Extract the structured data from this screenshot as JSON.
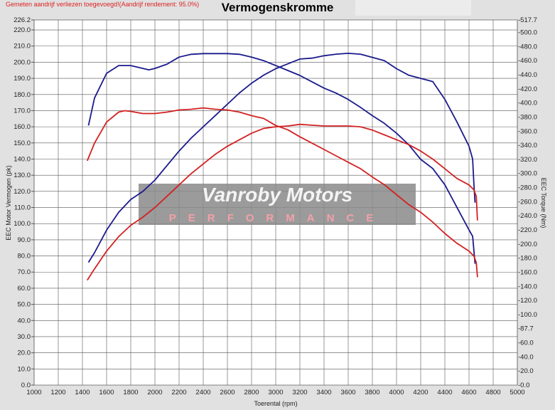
{
  "header": {
    "notice": "Gemeten aandrijf verliezen toegevoegd!(Aandrijf rendement: 95.0%)",
    "title": "Vermogenskromme"
  },
  "watermark": {
    "line1": "Vanroby Motors",
    "line2": "PERFORMANCE"
  },
  "chart_data": {
    "type": "line",
    "title": "Vermogenskromme",
    "xlabel": "Toerental (rpm)",
    "ylabel": "EEC Motor Vermogen (pk)",
    "y2label": "EEC Torque (Nm)",
    "xlim": [
      1000,
      5000
    ],
    "ylim": [
      0,
      226.2
    ],
    "y2lim": [
      0,
      517.7
    ],
    "grid": true,
    "x_ticks": [
      1000,
      1200,
      1400,
      1600,
      1800,
      2000,
      2200,
      2400,
      2600,
      2800,
      3000,
      3200,
      3400,
      3600,
      3800,
      4000,
      4200,
      4400,
      4600,
      4800,
      5000
    ],
    "y_ticks": [
      "0.0",
      "10.0",
      "20.0",
      "30.0",
      "40.0",
      "50.0",
      "60.0",
      "70.0",
      "80.0",
      "90.0",
      "100.0",
      "110.0",
      "120.0",
      "130.0",
      "140.0",
      "150.0",
      "160.0",
      "170.0",
      "180.0",
      "190.0",
      "200.0",
      "210.0",
      "220.0",
      "226.2"
    ],
    "y2_ticks": [
      "-0.0",
      "-20.0",
      "-40.0",
      "-60.0",
      "-87.7",
      "-100.0",
      "-120.0",
      "-140.0",
      "-160.0",
      "-180.0",
      "-200.0",
      "-220.0",
      "-240.0",
      "-260.0",
      "-280.0",
      "-300.0",
      "-320.0",
      "-340.0",
      "-360.0",
      "-380.0",
      "-400.0",
      "-420.0",
      "-440.0",
      "-460.0",
      "-480.0",
      "-500.0",
      "-517.7"
    ],
    "series": [
      {
        "axis": "left",
        "color": "#1a1a8c",
        "x": [
          1450,
          1500,
          1600,
          1700,
          1800,
          1900,
          2000,
          2100,
          2200,
          2300,
          2400,
          2500,
          2600,
          2700,
          2800,
          2900,
          3000,
          3100,
          3200,
          3300,
          3400,
          3500,
          3600,
          3700,
          3800,
          3900,
          4000,
          4100,
          4200,
          4300,
          4400,
          4500,
          4600,
          4630,
          4640,
          4650
        ],
        "y": [
          76,
          82,
          96,
          107,
          115,
          120,
          127,
          136,
          145,
          153,
          160,
          167,
          174,
          181,
          187,
          192,
          196,
          199,
          202,
          202.5,
          204,
          205,
          205.5,
          205,
          203,
          201,
          196,
          192,
          190,
          188,
          177,
          163,
          148,
          140,
          125,
          113
        ]
      },
      {
        "axis": "right",
        "color": "#1a1a8c",
        "x": [
          1450,
          1500,
          1600,
          1700,
          1800,
          1900,
          1950,
          2000,
          2100,
          2200,
          2300,
          2400,
          2600,
          2700,
          2800,
          2900,
          3000,
          3100,
          3200,
          3300,
          3400,
          3500,
          3600,
          3700,
          3800,
          3900,
          4000,
          4100,
          4200,
          4300,
          4400,
          4500,
          4600,
          4630,
          4650
        ],
        "y": [
          368,
          407,
          442,
          453,
          453,
          449,
          447,
          449,
          455,
          465,
          469,
          470,
          470,
          469,
          465,
          460,
          453,
          446,
          439,
          430,
          421,
          414,
          405,
          394,
          382,
          371,
          357,
          341,
          320,
          307,
          284,
          252,
          220,
          211,
          172
        ]
      },
      {
        "axis": "left",
        "color": "#d42020",
        "x": [
          1440,
          1500,
          1600,
          1700,
          1800,
          1900,
          2000,
          2100,
          2200,
          2300,
          2400,
          2500,
          2600,
          2700,
          2800,
          2900,
          3000,
          3100,
          3200,
          3300,
          3400,
          3500,
          3600,
          3700,
          3800,
          3900,
          4000,
          4100,
          4200,
          4300,
          4400,
          4500,
          4600,
          4640,
          4660,
          4670
        ],
        "y": [
          65,
          72,
          83,
          92,
          99,
          104,
          110,
          117,
          124,
          131,
          137,
          143,
          148,
          152,
          156,
          159,
          160,
          160.5,
          161.5,
          161,
          160.5,
          160.5,
          160.5,
          160,
          158,
          155,
          152,
          149,
          145,
          140,
          134,
          128,
          124,
          121,
          117,
          102
        ]
      },
      {
        "axis": "right",
        "color": "#d42020",
        "x": [
          1440,
          1500,
          1600,
          1700,
          1750,
          1800,
          1900,
          2000,
          2100,
          2200,
          2300,
          2400,
          2500,
          2600,
          2700,
          2800,
          2900,
          3000,
          3100,
          3200,
          3300,
          3400,
          3500,
          3600,
          3700,
          3800,
          3900,
          4000,
          4100,
          4200,
          4300,
          4400,
          4500,
          4600,
          4640,
          4660,
          4670
        ],
        "y": [
          318,
          343,
          373,
          387,
          389,
          388,
          385,
          385,
          387,
          390,
          391,
          393,
          391,
          390,
          387,
          382,
          378,
          368,
          362,
          352,
          343,
          334,
          325,
          316,
          307,
          295,
          284,
          270,
          256,
          245,
          231,
          215,
          201,
          190,
          183,
          174,
          153
        ]
      }
    ]
  }
}
